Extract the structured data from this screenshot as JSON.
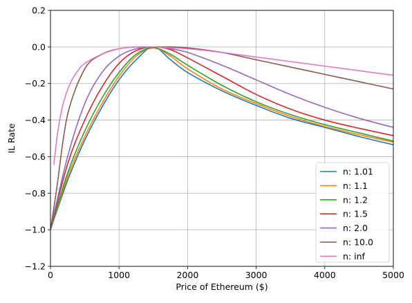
{
  "chart_data": {
    "type": "line",
    "title": "",
    "xlabel": "Price of Ethereum ($)",
    "ylabel": "IL Rate",
    "xlim": [
      0,
      5000
    ],
    "ylim": [
      -1.2,
      0.2
    ],
    "xticks": [
      0,
      1000,
      2000,
      3000,
      4000,
      5000
    ],
    "xtick_labels": [
      "0",
      "1000",
      "2000",
      "3000",
      "4000",
      "5000"
    ],
    "yticks": [
      -1.2,
      -1.0,
      -0.8,
      -0.6,
      -0.4,
      -0.2,
      0.0,
      0.2
    ],
    "ytick_labels": [
      "−1.2",
      "−1.0",
      "−0.8",
      "−0.6",
      "−0.4",
      "−0.2",
      "0.0",
      "0.2"
    ],
    "grid": true,
    "legend_position": "bottom-right",
    "series": [
      {
        "name": "n: 1.01",
        "color": "#1f77b4",
        "x": [
          0,
          250,
          500,
          750,
          1000,
          1250,
          1500,
          1750,
          2000,
          2500,
          3000,
          3500,
          4000,
          4500,
          5000
        ],
        "y": [
          -1.0,
          -0.73,
          -0.51,
          -0.33,
          -0.18,
          -0.07,
          0.0,
          -0.07,
          -0.14,
          -0.24,
          -0.32,
          -0.39,
          -0.44,
          -0.49,
          -0.535
        ]
      },
      {
        "name": "n: 1.1",
        "color": "#ff7f0e",
        "x": [
          0,
          250,
          500,
          750,
          1000,
          1250,
          1500,
          1750,
          2000,
          2500,
          3000,
          3500,
          4000,
          4500,
          5000
        ],
        "y": [
          -1.0,
          -0.71,
          -0.49,
          -0.31,
          -0.16,
          -0.05,
          -0.005,
          -0.05,
          -0.12,
          -0.23,
          -0.31,
          -0.38,
          -0.435,
          -0.48,
          -0.52
        ]
      },
      {
        "name": "n: 1.2",
        "color": "#2ca02c",
        "x": [
          0,
          250,
          500,
          750,
          1000,
          1250,
          1500,
          1750,
          2000,
          2500,
          3000,
          3500,
          4000,
          4500,
          5000
        ],
        "y": [
          -1.0,
          -0.69,
          -0.46,
          -0.28,
          -0.14,
          -0.04,
          -0.005,
          -0.04,
          -0.1,
          -0.21,
          -0.3,
          -0.37,
          -0.425,
          -0.47,
          -0.515
        ]
      },
      {
        "name": "n: 1.5",
        "color": "#d62728",
        "x": [
          0,
          250,
          500,
          750,
          1000,
          1250,
          1500,
          1750,
          2000,
          2500,
          3000,
          3500,
          4000,
          4500,
          5000
        ],
        "y": [
          -1.0,
          -0.64,
          -0.4,
          -0.22,
          -0.09,
          -0.02,
          0.0,
          -0.015,
          -0.06,
          -0.16,
          -0.26,
          -0.34,
          -0.4,
          -0.445,
          -0.485
        ]
      },
      {
        "name": "n: 2.0",
        "color": "#9467bd",
        "x": [
          0,
          250,
          500,
          750,
          1000,
          1250,
          1500,
          1750,
          2000,
          2500,
          3000,
          3500,
          4000,
          4500,
          5000
        ],
        "y": [
          -1.0,
          -0.6,
          -0.31,
          -0.14,
          -0.05,
          -0.01,
          0.0,
          -0.01,
          -0.03,
          -0.1,
          -0.18,
          -0.26,
          -0.33,
          -0.39,
          -0.44
        ]
      },
      {
        "name": "n: 10.0",
        "color": "#8c564b",
        "x": [
          0,
          50,
          100,
          250,
          500,
          750,
          1000,
          1250,
          1500,
          1750,
          2000,
          2500,
          3000,
          3500,
          4000,
          4500,
          5000
        ],
        "y": [
          -1.0,
          -0.88,
          -0.75,
          -0.37,
          -0.12,
          -0.04,
          -0.01,
          0.0,
          0.0,
          0.0,
          -0.005,
          -0.03,
          -0.07,
          -0.11,
          -0.15,
          -0.19,
          -0.23
        ]
      },
      {
        "name": "n: inf",
        "color": "#e377c2",
        "x": [
          50,
          100,
          150,
          200,
          300,
          400,
          500,
          750,
          1000,
          1250,
          1500,
          1750,
          2000,
          2500,
          3000,
          3500,
          4000,
          4500,
          5000
        ],
        "y": [
          -0.645,
          -0.48,
          -0.37,
          -0.29,
          -0.19,
          -0.13,
          -0.09,
          -0.04,
          -0.01,
          0.0,
          0.0,
          -0.005,
          -0.01,
          -0.03,
          -0.055,
          -0.08,
          -0.105,
          -0.13,
          -0.155
        ]
      }
    ]
  }
}
